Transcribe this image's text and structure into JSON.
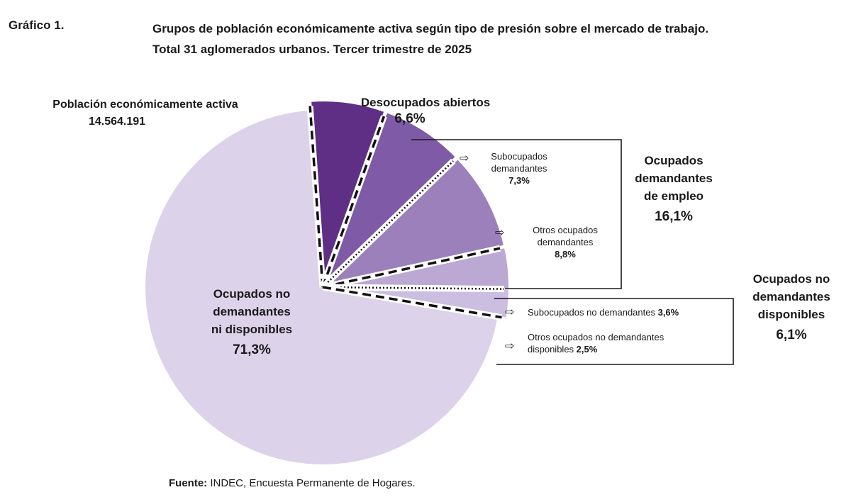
{
  "figure_label": "Gráfico 1.",
  "title_line1": "Grupos de población económicamente activa según tipo de presión sobre el mercado de trabajo.",
  "title_line2": "Total 31 aglomerados urbanos. Tercer trimestre de 2025",
  "pea": {
    "label": "Población económicamente activa",
    "value": "14.564.191"
  },
  "source": {
    "prefix": "Fuente:",
    "text": " INDEC, Encuesta Permanente de Hogares."
  },
  "labels": {
    "desocupados": {
      "name": "Desocupados abiertos",
      "pct": "6,6%"
    },
    "subocupados_dem": {
      "line1": "Subocupados",
      "line2": "demandantes",
      "pct": "7,3%"
    },
    "otros_dem": {
      "line1": "Otros ocupados",
      "line2": "demandantes",
      "pct": "8,8%"
    },
    "ocupados_demandantes": {
      "line1": "Ocupados",
      "line2": "demandantes",
      "line3": "de empleo",
      "pct": "16,1%"
    },
    "subocupados_no_dem": {
      "text": "Subocupados no demandantes ",
      "pct": "3,6%"
    },
    "otros_no_dem": {
      "line1": "Otros ocupados no demandantes",
      "line2": "disponibles ",
      "pct": "2,5%"
    },
    "ocupados_no_dem_disp": {
      "line1": "Ocupados no",
      "line2": "demandantes",
      "line3": "disponibles",
      "pct": "6,1%"
    },
    "ocupados_no_dem_ni_disp": {
      "line1": "Ocupados no",
      "line2": "demandantes",
      "line3": "ni disponibles",
      "pct": "71,3%"
    }
  },
  "chart_data": {
    "type": "pie",
    "categories": [
      "Desocupados abiertos",
      "Subocupados demandantes",
      "Otros ocupados demandantes",
      "Subocupados no demandantes",
      "Otros ocupados no demandantes disponibles",
      "Ocupados no demandantes ni disponibles"
    ],
    "values": [
      6.6,
      7.3,
      8.8,
      3.6,
      2.5,
      71.3
    ],
    "colors": [
      "#5f2f86",
      "#7f5aa6",
      "#9b80bb",
      "#bba8d3",
      "#ccbee0",
      "#dcd3ea"
    ],
    "groups": [
      {
        "name": "Ocupados demandantes de empleo",
        "value": 16.1
      },
      {
        "name": "Ocupados no demandantes disponibles",
        "value": 6.1
      }
    ],
    "total": "14.564.191"
  }
}
